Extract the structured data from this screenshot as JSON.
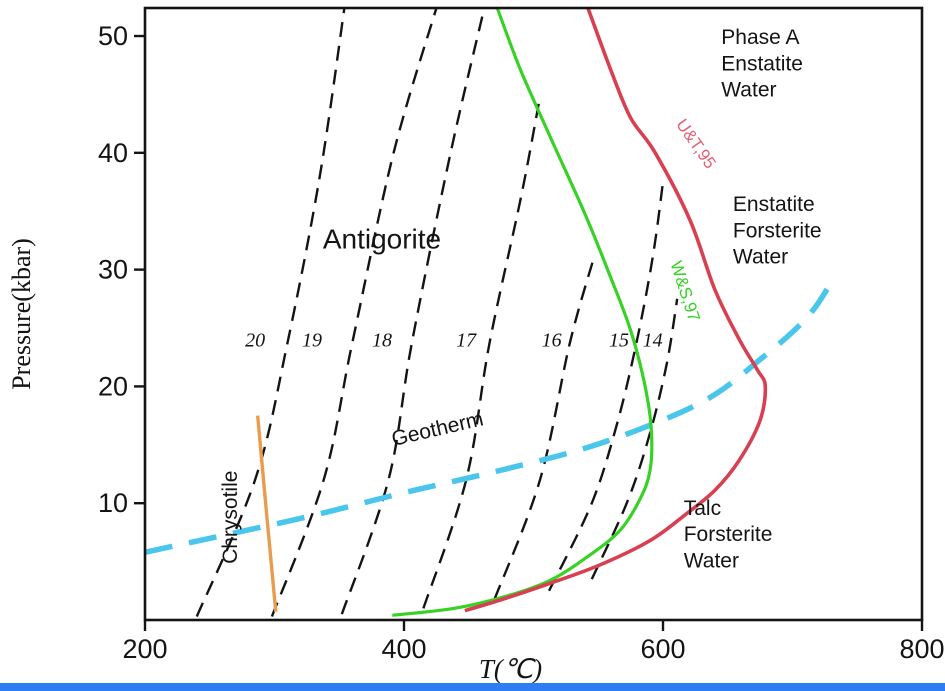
{
  "figure": {
    "background": "#ffffff",
    "bottom_bar_color": "#2f7df5"
  },
  "chart_data": {
    "type": "line",
    "title": "",
    "xlabel": "T(℃)",
    "ylabel": "Pressure(kbar)",
    "xlim": [
      200,
      800
    ],
    "ylim": [
      0,
      52.4
    ],
    "xticks": [
      200,
      400,
      600,
      800
    ],
    "yticks": [
      10,
      20,
      30,
      40,
      50
    ],
    "grid": false,
    "frame_color": "#141414",
    "series": [
      {
        "id": "ut95-curve",
        "name": "U&T,95",
        "color": "#d84052",
        "dash": "",
        "width": 3.6,
        "points": [
          [
            542,
            52.4
          ],
          [
            560,
            47
          ],
          [
            575,
            43
          ],
          [
            594,
            40
          ],
          [
            621,
            34.2
          ],
          [
            640,
            28.3
          ],
          [
            659,
            24
          ],
          [
            673,
            21.4
          ],
          [
            679,
            20
          ],
          [
            675,
            17.1
          ],
          [
            659,
            13.7
          ],
          [
            640,
            11.1
          ],
          [
            617,
            9
          ],
          [
            590,
            6.8
          ],
          [
            551,
            4.7
          ],
          [
            509,
            3
          ],
          [
            474,
            1.7
          ],
          [
            447,
            0.8
          ]
        ]
      },
      {
        "id": "ws97-curve",
        "name": "W&S,97",
        "color": "#38d126",
        "dash": "",
        "width": 3.2,
        "points": [
          [
            472,
            52.4
          ],
          [
            490,
            47.1
          ],
          [
            514,
            41.1
          ],
          [
            540,
            34.7
          ],
          [
            559,
            29.5
          ],
          [
            575,
            24.8
          ],
          [
            586,
            20.1
          ],
          [
            591,
            16.3
          ],
          [
            590,
            12.8
          ],
          [
            582,
            10.3
          ],
          [
            567,
            7.7
          ],
          [
            544,
            5.6
          ],
          [
            513,
            3.4
          ],
          [
            478,
            2
          ],
          [
            439,
            1
          ],
          [
            391,
            0.4
          ]
        ]
      },
      {
        "id": "geotherm-curve",
        "name": "Geotherm",
        "color": "#4ac6ec",
        "dash": "28 17",
        "width": 5.5,
        "points": [
          [
            200,
            5.8
          ],
          [
            320,
            8.7
          ],
          [
            400,
            10.9
          ],
          [
            474,
            12.8
          ],
          [
            551,
            15.1
          ],
          [
            629,
            18.6
          ],
          [
            675,
            22.3
          ],
          [
            712,
            26
          ],
          [
            733,
            29.5
          ]
        ]
      },
      {
        "id": "chrysotile-curve",
        "name": "Chrysotile",
        "color": "#e99c4e",
        "dash": "",
        "width": 3.4,
        "points": [
          [
            287,
            17.5
          ],
          [
            294,
            9
          ],
          [
            301,
            0.7
          ]
        ]
      }
    ],
    "contours": {
      "dash": "15 9",
      "width": 2.4,
      "color": "#141414",
      "items": [
        {
          "label": "20",
          "label_t": 285,
          "label_p": 23.4,
          "points": [
            [
              240,
              0.3
            ],
            [
              285,
              12
            ],
            [
              310,
              23.7
            ],
            [
              335,
              38
            ],
            [
              354,
              52.4
            ]
          ]
        },
        {
          "label": "19",
          "label_t": 329,
          "label_p": 23.4,
          "points": [
            [
              298,
              0.3
            ],
            [
              338,
              12
            ],
            [
              360,
              23.7
            ],
            [
              392,
              40
            ],
            [
              425,
              52.4
            ]
          ]
        },
        {
          "label": "18",
          "label_t": 383,
          "label_p": 23.4,
          "points": [
            [
              352,
              0.5
            ],
            [
              388,
              12
            ],
            [
              406,
              23.7
            ],
            [
              436,
              40
            ],
            [
              462,
              52.4
            ]
          ]
        },
        {
          "label": "17",
          "label_t": 448,
          "label_p": 23.4,
          "points": [
            [
              415,
              1.0
            ],
            [
              448,
              12
            ],
            [
              466,
              23.7
            ],
            [
              490,
              36
            ],
            [
              504,
              44.2
            ]
          ]
        },
        {
          "label": "16",
          "label_t": 514,
          "label_p": 23.4,
          "points": [
            [
              470,
              1.8
            ],
            [
              505,
              12
            ],
            [
              528,
              23.7
            ],
            [
              546,
              30.8
            ]
          ]
        },
        {
          "label": "15",
          "label_t": 566,
          "label_p": 23.4,
          "points": [
            [
              512,
              2.5
            ],
            [
              545,
              10
            ],
            [
              565,
              17
            ],
            [
              580,
              24
            ],
            [
              592,
              31
            ],
            [
              600,
              37.5
            ]
          ]
        },
        {
          "label": "14",
          "label_t": 592,
          "label_p": 23.4,
          "points": [
            [
              545,
              3.5
            ],
            [
              572,
              10
            ],
            [
              590,
              16
            ],
            [
              603,
              22
            ],
            [
              611,
              27.5
            ]
          ]
        }
      ]
    },
    "annotations": [
      {
        "id": "antigorite-label",
        "text": "Antigorite",
        "t": 383,
        "p": 31.8,
        "size": 28,
        "color": "#141414",
        "rotate": 0,
        "anchor": "middle"
      },
      {
        "id": "region-phase-a",
        "lines": [
          "Phase A",
          "Enstatite",
          "Water"
        ],
        "t": 645,
        "p": 49.3,
        "size": 21,
        "color": "#141414",
        "anchor": "start"
      },
      {
        "id": "region-enstatite",
        "lines": [
          "Enstatite",
          "Forsterite",
          "Water"
        ],
        "t": 654,
        "p": 35.0,
        "size": 21,
        "color": "#141414",
        "anchor": "start"
      },
      {
        "id": "region-talc",
        "lines": [
          "Talc",
          "Forsterite",
          "Water"
        ],
        "t": 616,
        "p": 9.0,
        "size": 21,
        "color": "#141414",
        "anchor": "start"
      },
      {
        "id": "geotherm-label",
        "text": "Geotherm",
        "t": 427,
        "p": 15.8,
        "size": 21,
        "color": "#141414",
        "rotate": -13,
        "anchor": "middle"
      },
      {
        "id": "chrysotile-label",
        "text": "Chrysotile",
        "t": 271,
        "p": 8.8,
        "size": 21,
        "color": "#141414",
        "rotate": -90,
        "anchor": "middle"
      },
      {
        "id": "ut95-label",
        "text": "U&T,95",
        "t": 622,
        "p": 40.5,
        "size": 17,
        "color": "#e75d72",
        "rotate": 55,
        "anchor": "middle"
      },
      {
        "id": "ws97-label",
        "text": "W&S,97",
        "t": 613,
        "p": 28.0,
        "size": 17,
        "color": "#38d126",
        "rotate": 72,
        "anchor": "middle"
      }
    ]
  }
}
